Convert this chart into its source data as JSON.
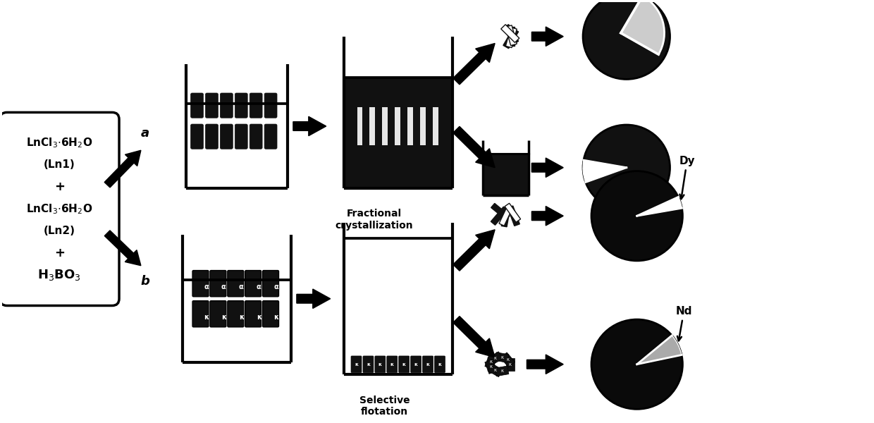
{
  "bg_color": "#ffffff",
  "frac_cryst_label": "Fractional\ncrystallization",
  "sel_float_label": "Selective\nflotation",
  "dy_label": "Dy",
  "nd_label": "Nd",
  "label_a": "a",
  "label_b": "b"
}
